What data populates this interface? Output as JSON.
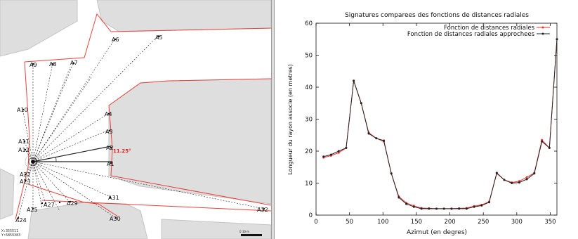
{
  "map": {
    "point_labels": [
      "A5",
      "A6",
      "A7",
      "A8",
      "A9",
      "A10",
      "A11",
      "A12",
      "A22",
      "A23",
      "A24",
      "A25",
      "A27",
      "A29",
      "A30",
      "A31",
      "A32",
      "A1",
      "A2",
      "A3",
      "A4"
    ],
    "angle_label": "11.25°",
    "coord_x": "X:355511",
    "coord_y": "Y:6859383",
    "scale_label": "0        10 m",
    "colors": {
      "building": "#dedede",
      "street": "#ffffff",
      "outline": "#e8423c",
      "ray": "#222222",
      "angle_text": "#e0201a"
    }
  },
  "chart_data": {
    "type": "line",
    "title": "Signatures comparees des fonctions de distances radiales",
    "xlabel": "Azimut (en degres)",
    "ylabel": "Longueur du rayon associe (en metres)",
    "xlim": [
      0,
      360
    ],
    "ylim": [
      0,
      60
    ],
    "xticks": [
      0,
      50,
      100,
      150,
      200,
      250,
      300,
      350
    ],
    "yticks": [
      0,
      10,
      20,
      30,
      40,
      50,
      60
    ],
    "grid": false,
    "legend_position": "top-right",
    "series": [
      {
        "name": "Fonction de distances radiales",
        "color": "#e8322c",
        "x": [
          11.25,
          22.5,
          33.75,
          45,
          56.25,
          67.5,
          78.75,
          90,
          101.25,
          112.5,
          123.75,
          135,
          146.25,
          157.5,
          168.75,
          180,
          191.25,
          202.5,
          213.75,
          225,
          236.25,
          247.5,
          258.75,
          270,
          281.25,
          292.5,
          303.75,
          315,
          326.25,
          337.5,
          348.75,
          360
        ],
        "y": [
          18.0,
          18.6,
          19.5,
          21.0,
          42.0,
          35.0,
          25.8,
          24.0,
          23.0,
          13.0,
          5.8,
          3.8,
          2.9,
          2.2,
          2.1,
          2.0,
          2.0,
          2.0,
          2.1,
          2.2,
          2.8,
          3.2,
          4.2,
          13.0,
          11.0,
          10.2,
          10.6,
          11.8,
          13.2,
          23.5,
          21.0,
          55.0
        ]
      },
      {
        "name": "Fonction de distances radiales approchees",
        "color": "#222222",
        "x": [
          11.25,
          22.5,
          33.75,
          45,
          56.25,
          67.5,
          78.75,
          90,
          101.25,
          112.5,
          123.75,
          135,
          146.25,
          157.5,
          168.75,
          180,
          191.25,
          202.5,
          213.75,
          225,
          236.25,
          247.5,
          258.75,
          270,
          281.25,
          292.5,
          303.75,
          315,
          326.25,
          337.5,
          348.75,
          360
        ],
        "y": [
          18.3,
          18.9,
          20.0,
          21.0,
          42.0,
          35.0,
          25.5,
          24.0,
          23.3,
          13.0,
          5.5,
          3.5,
          2.6,
          2.0,
          2.0,
          2.0,
          2.0,
          2.0,
          2.0,
          2.0,
          2.6,
          3.0,
          4.0,
          13.2,
          11.0,
          10.0,
          10.2,
          11.2,
          13.0,
          23.0,
          21.0,
          55.0
        ]
      }
    ]
  }
}
